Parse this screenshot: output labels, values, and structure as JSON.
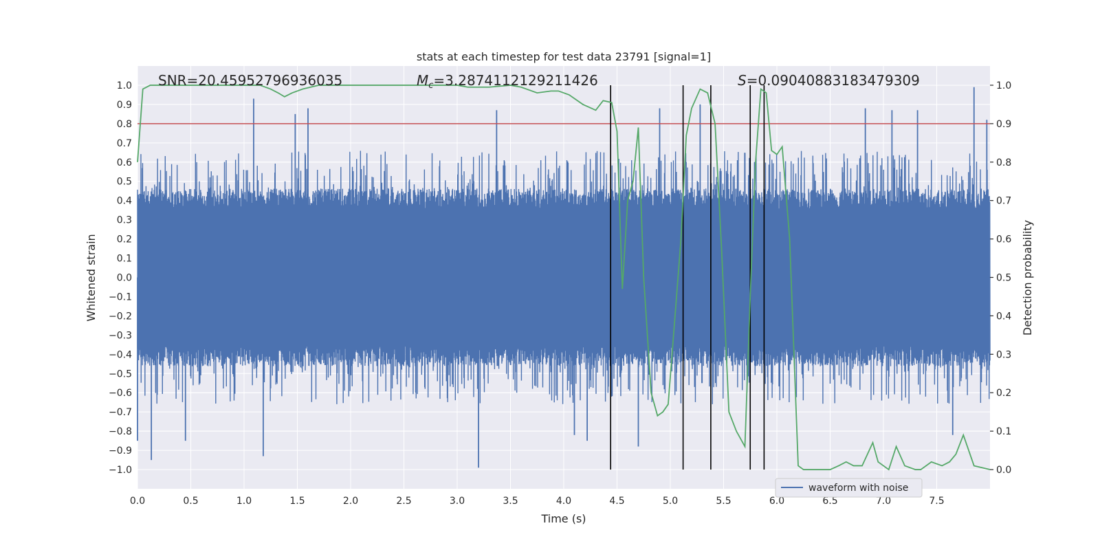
{
  "chart_data": {
    "type": "line",
    "title": "stats at each timestep for test data 23791 [signal=1]",
    "xlabel": "Time (s)",
    "ylabel_left": "Whitened strain",
    "ylabel_right": "Detection probability",
    "xlim": [
      0.0,
      8.0
    ],
    "ylim_left": [
      -1.1,
      1.1
    ],
    "ylim_right": [
      -0.05,
      1.05
    ],
    "x_ticks": [
      0.0,
      0.5,
      1.0,
      1.5,
      2.0,
      2.5,
      3.0,
      3.5,
      4.0,
      4.5,
      5.0,
      5.5,
      6.0,
      6.5,
      7.0,
      7.5
    ],
    "x_tick_labels": [
      "0.0",
      "0.5",
      "1.0",
      "1.5",
      "2.0",
      "2.5",
      "3.0",
      "3.5",
      "4.0",
      "4.5",
      "5.0",
      "5.5",
      "6.0",
      "6.5",
      "7.0",
      "7.5"
    ],
    "y_left_ticks": [
      -1.0,
      -0.9,
      -0.8,
      -0.7,
      -0.6,
      -0.5,
      -0.4,
      -0.3,
      -0.2,
      -0.1,
      0.0,
      0.1,
      0.2,
      0.3,
      0.4,
      0.5,
      0.6,
      0.7,
      0.8,
      0.9,
      1.0
    ],
    "y_left_tick_labels": [
      "−1.0",
      "−0.9",
      "−0.8",
      "−0.7",
      "−0.6",
      "−0.5",
      "−0.4",
      "−0.3",
      "−0.2",
      "−0.1",
      "0.0",
      "0.1",
      "0.2",
      "0.3",
      "0.4",
      "0.5",
      "0.6",
      "0.7",
      "0.8",
      "0.9",
      "1.0"
    ],
    "y_right_ticks": [
      0.0,
      0.1,
      0.2,
      0.3,
      0.4,
      0.5,
      0.6,
      0.7,
      0.8,
      0.9,
      1.0
    ],
    "y_right_tick_labels": [
      "0.0",
      "0.1",
      "0.2",
      "0.3",
      "0.4",
      "0.5",
      "0.6",
      "0.7",
      "0.8",
      "0.9",
      "1.0"
    ],
    "annotations": {
      "snr": "SNR=20.45952796936035",
      "mc_symbol": "M",
      "mc_sub": "c",
      "mc_value": "=3.2874112129211426",
      "s_symbol": "S",
      "s_value": "=0.09040883183479309"
    },
    "legend": {
      "label": "waveform with noise",
      "position": "bottom-right"
    },
    "threshold_line": {
      "y_right": 0.9,
      "color": "#c44e52"
    },
    "event_markers_x": [
      4.44,
      5.12,
      5.38,
      5.75,
      5.88
    ],
    "series": [
      {
        "name": "waveform with noise",
        "axis": "left",
        "color": "#4c72b0",
        "kind": "dense_noise",
        "core_amplitude": 0.42,
        "typical_peak": 0.62,
        "spikes": [
          {
            "x": 0.0,
            "y": -0.85
          },
          {
            "x": 0.13,
            "y": -0.95
          },
          {
            "x": 0.45,
            "y": -0.85
          },
          {
            "x": 1.09,
            "y": 0.93
          },
          {
            "x": 1.18,
            "y": -0.93
          },
          {
            "x": 1.48,
            "y": 0.85
          },
          {
            "x": 1.6,
            "y": 0.88
          },
          {
            "x": 3.2,
            "y": -0.99
          },
          {
            "x": 3.37,
            "y": 0.87
          },
          {
            "x": 4.1,
            "y": -0.82
          },
          {
            "x": 4.22,
            "y": -0.85
          },
          {
            "x": 4.7,
            "y": -0.88
          },
          {
            "x": 4.9,
            "y": 0.88
          },
          {
            "x": 5.28,
            "y": 0.9
          },
          {
            "x": 6.83,
            "y": 0.88
          },
          {
            "x": 7.08,
            "y": 0.87
          },
          {
            "x": 7.32,
            "y": 0.87
          },
          {
            "x": 7.65,
            "y": -0.82
          },
          {
            "x": 7.85,
            "y": 0.99
          },
          {
            "x": 7.97,
            "y": 0.82
          }
        ]
      },
      {
        "name": "Detection probability",
        "axis": "right",
        "color": "#55a868",
        "x": [
          0.0,
          0.05,
          0.12,
          0.25,
          0.5,
          0.75,
          1.0,
          1.15,
          1.25,
          1.32,
          1.38,
          1.45,
          1.55,
          1.7,
          2.0,
          2.5,
          3.0,
          3.1,
          3.3,
          3.5,
          3.6,
          3.75,
          3.88,
          3.95,
          4.05,
          4.18,
          4.3,
          4.37,
          4.45,
          4.5,
          4.55,
          4.6,
          4.65,
          4.7,
          4.75,
          4.82,
          4.88,
          4.93,
          4.98,
          5.05,
          5.1,
          5.15,
          5.2,
          5.28,
          5.35,
          5.42,
          5.48,
          5.55,
          5.62,
          5.7,
          5.75,
          5.8,
          5.85,
          5.9,
          5.95,
          6.0,
          6.05,
          6.12,
          6.2,
          6.25,
          6.4,
          6.5,
          6.58,
          6.65,
          6.72,
          6.8,
          6.9,
          6.95,
          7.05,
          7.12,
          7.2,
          7.3,
          7.35,
          7.45,
          7.55,
          7.62,
          7.68,
          7.75,
          7.85,
          8.0
        ],
        "values": [
          0.8,
          0.99,
          1.0,
          1.0,
          1.0,
          1.0,
          1.0,
          1.0,
          0.99,
          0.98,
          0.97,
          0.98,
          0.99,
          1.0,
          1.0,
          1.0,
          1.0,
          0.995,
          0.995,
          1.0,
          0.995,
          0.98,
          0.985,
          0.985,
          0.975,
          0.95,
          0.935,
          0.96,
          0.955,
          0.88,
          0.47,
          0.7,
          0.75,
          0.89,
          0.5,
          0.2,
          0.14,
          0.15,
          0.17,
          0.42,
          0.6,
          0.87,
          0.94,
          0.99,
          0.98,
          0.9,
          0.58,
          0.15,
          0.1,
          0.06,
          0.45,
          0.8,
          0.99,
          0.98,
          0.83,
          0.82,
          0.84,
          0.6,
          0.01,
          0.0,
          0.0,
          0.0,
          0.01,
          0.02,
          0.01,
          0.01,
          0.07,
          0.02,
          0.0,
          0.06,
          0.01,
          0.0,
          0.0,
          0.02,
          0.01,
          0.02,
          0.04,
          0.09,
          0.01,
          0.0
        ]
      }
    ]
  }
}
